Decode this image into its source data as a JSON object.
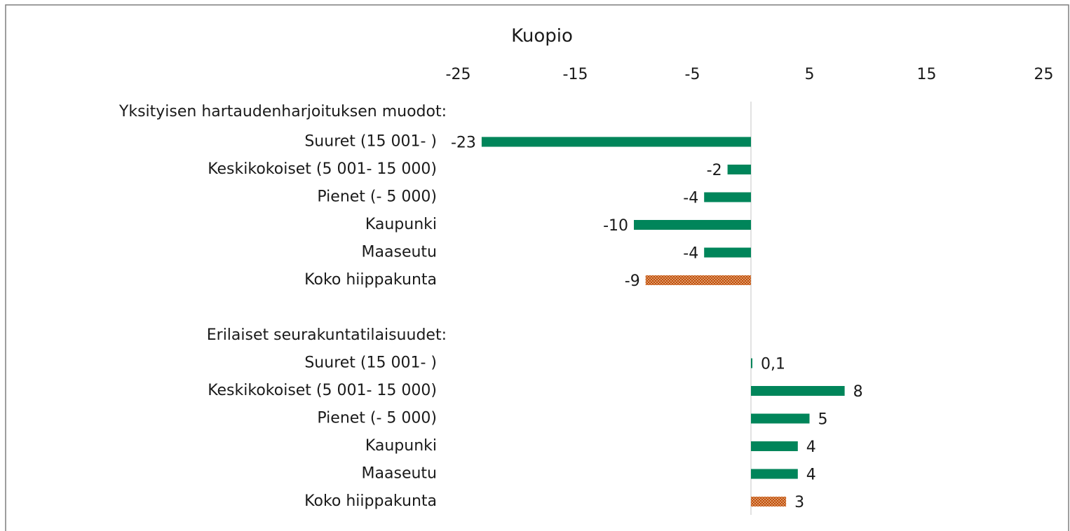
{
  "chart_data": {
    "type": "barh",
    "title": "Kuopio",
    "categories": [
      "Yksityisen hartaudenharjoituksen muodot:",
      "Suuret (15 001- )",
      "Keskikokoiset (5 001- 15 000)",
      "Pienet (- 5 000)",
      "Kaupunki",
      "Maaseutu",
      "Koko hiippakunta",
      null,
      "Erilaiset seurakuntatilaisuudet:",
      "Suuret (15 001- )",
      "Keskikokoiset (5 001- 15 000)",
      "Pienet (- 5 000)",
      "Kaupunki",
      "Maaseutu",
      "Koko hiippakunta"
    ],
    "values": [
      null,
      -23,
      -2,
      -4,
      -10,
      -4,
      -9,
      null,
      null,
      0.1,
      8,
      5,
      4,
      4,
      3
    ],
    "value_labels": [
      null,
      "-23",
      "-2",
      "-4",
      "-10",
      "-4",
      "-9",
      null,
      null,
      "0,1",
      "8",
      "5",
      "4",
      "4",
      "3"
    ],
    "color": "#00855a",
    "colors": [
      null,
      "#00855a",
      "#00855a",
      "#00855a",
      "#00855a",
      "#00855a",
      "#c0500a",
      null,
      null,
      "#00855a",
      "#00855a",
      "#00855a",
      "#00855a",
      "#00855a",
      "#c0500a"
    ],
    "xlim": [
      -25,
      25
    ],
    "xticks": [
      -25,
      -15,
      -5,
      5,
      15,
      25
    ]
  }
}
